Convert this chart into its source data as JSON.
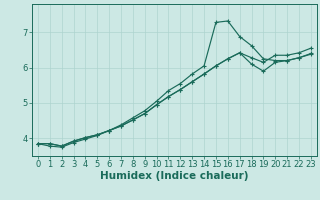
{
  "bg_color": "#cce8e4",
  "line_color": "#1a6b5a",
  "grid_color": "#aed4cf",
  "xlabel": "Humidex (Indice chaleur)",
  "xlabel_fontsize": 7.5,
  "tick_fontsize": 6,
  "ylabel_ticks": [
    4,
    5,
    6,
    7
  ],
  "xlim": [
    -0.5,
    23.5
  ],
  "ylim": [
    3.5,
    7.8
  ],
  "series_curvy_x": [
    0,
    1,
    2,
    3,
    4,
    5,
    6,
    7,
    8,
    9,
    10,
    11,
    12,
    13,
    14,
    15,
    16,
    17,
    18,
    19,
    20,
    21,
    22,
    23
  ],
  "series_curvy_y": [
    3.85,
    3.78,
    3.75,
    3.88,
    3.98,
    4.08,
    4.22,
    4.38,
    4.58,
    4.78,
    5.05,
    5.35,
    5.55,
    5.82,
    6.05,
    7.28,
    7.32,
    6.88,
    6.62,
    6.25,
    6.2,
    6.2,
    6.28,
    6.38
  ],
  "series_line1_x": [
    0,
    1,
    2,
    3,
    4,
    5,
    6,
    7,
    8,
    9,
    10,
    11,
    12,
    13,
    14,
    15,
    16,
    17,
    18,
    19,
    20,
    21,
    22,
    23
  ],
  "series_line1_y": [
    3.85,
    3.85,
    3.78,
    3.92,
    4.02,
    4.1,
    4.22,
    4.35,
    4.52,
    4.7,
    4.95,
    5.18,
    5.38,
    5.6,
    5.82,
    6.05,
    6.25,
    6.42,
    6.1,
    5.9,
    6.15,
    6.2,
    6.28,
    6.4
  ],
  "series_line2_x": [
    0,
    1,
    2,
    3,
    4,
    5,
    6,
    7,
    8,
    9,
    10,
    11,
    12,
    13,
    14,
    15,
    16,
    17,
    18,
    19,
    20,
    21,
    22,
    23
  ],
  "series_line2_y": [
    3.85,
    3.85,
    3.78,
    3.92,
    4.02,
    4.1,
    4.22,
    4.35,
    4.52,
    4.7,
    4.95,
    5.18,
    5.38,
    5.6,
    5.82,
    6.05,
    6.25,
    6.42,
    6.28,
    6.15,
    6.35,
    6.35,
    6.42,
    6.55
  ]
}
